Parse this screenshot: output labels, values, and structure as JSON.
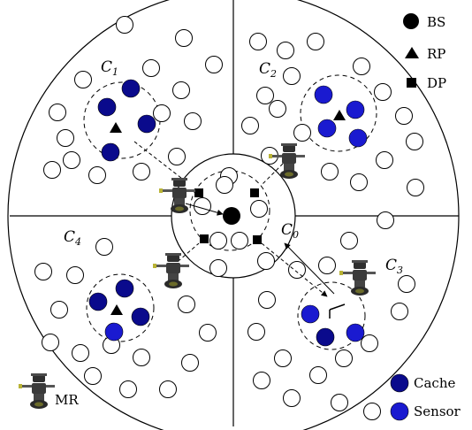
{
  "legend": {
    "bs": "BS",
    "rp": "RP",
    "dp": "DP",
    "cache": "Cache",
    "sensor": "Sensor",
    "mr": "MR"
  },
  "cells": {
    "c0": {
      "letter": "C",
      "sub": "0"
    },
    "c1": {
      "letter": "C",
      "sub": "1"
    },
    "c2": {
      "letter": "C",
      "sub": "2"
    },
    "c3": {
      "letter": "C",
      "sub": "3"
    },
    "c4": {
      "letter": "C",
      "sub": "4"
    }
  },
  "colors": {
    "line": "#000000",
    "node_fill": "#ffffff",
    "cache": "#0a0a8c",
    "sensor": "#1a1ad0",
    "robot": "#3b3b3b"
  },
  "icons": {
    "bs": "filled-circle",
    "rp": "filled-triangle",
    "dp": "filled-square",
    "mr": "robot"
  }
}
